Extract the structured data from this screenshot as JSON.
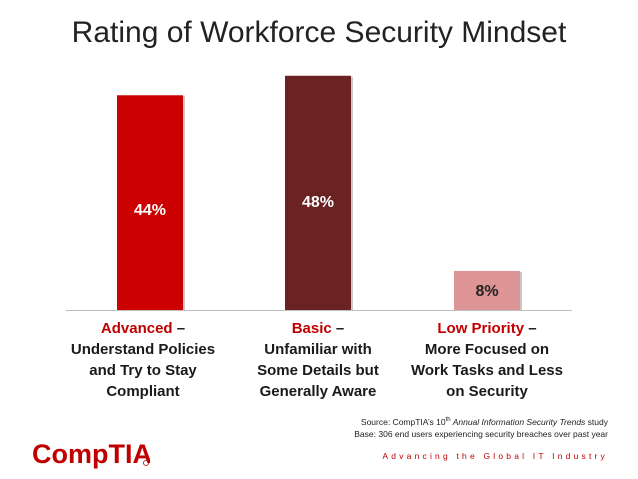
{
  "title": "Rating of Workforce Security Mindset",
  "chart_data": {
    "type": "bar",
    "title": "Rating of Workforce Security Mindset",
    "categories": [
      {
        "highlight": "Advanced",
        "rest": [
          " –",
          "Understand Policies",
          "and Try to Stay",
          "Compliant"
        ]
      },
      {
        "highlight": "Basic",
        "rest": [
          " –",
          "Unfamiliar with",
          "Some Details but",
          "Generally Aware"
        ]
      },
      {
        "highlight": "Low Priority",
        "rest": [
          " –",
          "More Focused on",
          "Work Tasks and Less",
          "on Security"
        ]
      }
    ],
    "values": [
      44,
      48,
      8
    ],
    "data_labels": [
      "44%",
      "48%",
      "8%"
    ],
    "colors": [
      "#cc0000",
      "#6b2222",
      "#dd9595"
    ],
    "label_colors": [
      "#ffffff",
      "#ffffff",
      "#222222"
    ],
    "ylim": [
      0,
      50
    ],
    "grid": false,
    "legend": "none"
  },
  "source": {
    "line1_prefix": "Source: CompTIA’s 10",
    "line1_sup": "th",
    "line1_italic": " Annual Information Security Trends",
    "line1_suffix": " study",
    "line2": "Base: 306 end users experiencing security breaches over past year"
  },
  "brand": {
    "logo_text": "CompTIA",
    "logo_color": "#c00000",
    "tagline": "Advancing the Global IT Industry"
  }
}
